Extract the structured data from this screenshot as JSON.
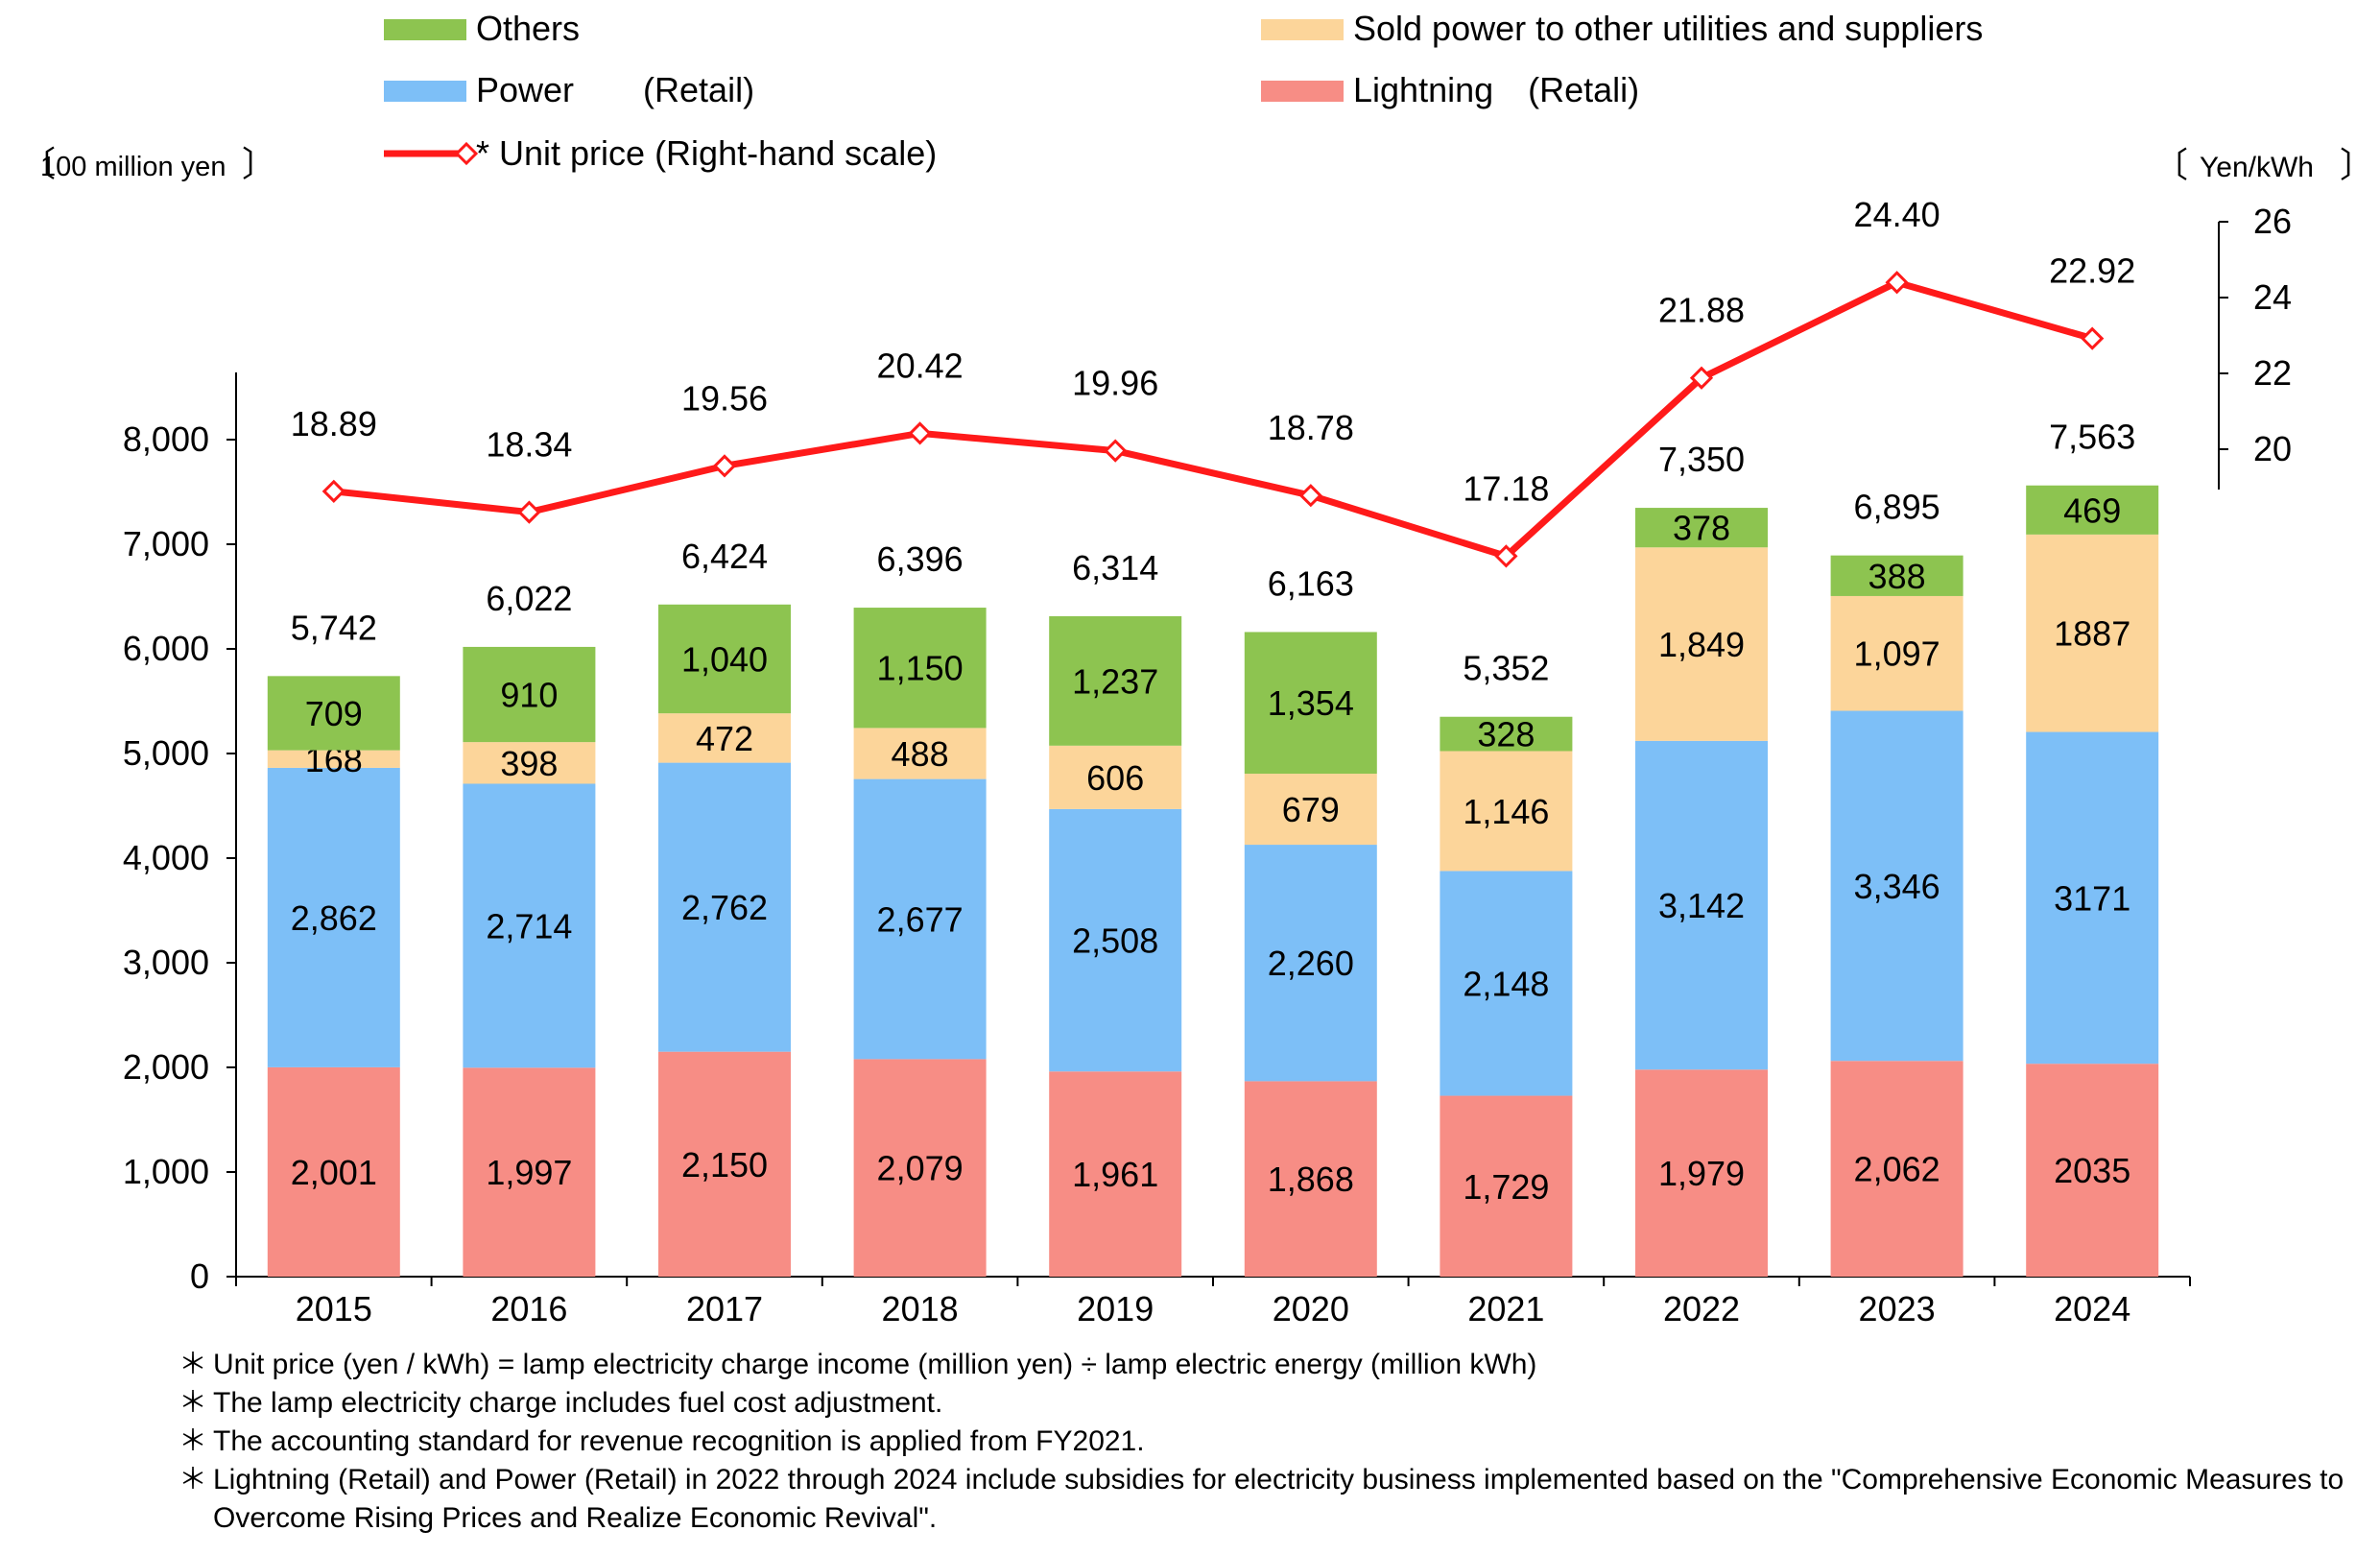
{
  "chart_data": {
    "type": "bar",
    "stacked": true,
    "categories": [
      "2015",
      "2016",
      "2017",
      "2018",
      "2019",
      "2020",
      "2021",
      "2022",
      "2023",
      "2024"
    ],
    "series": [
      {
        "name": "Lightning　(Retali)",
        "color": "#f78d85",
        "values": [
          2001,
          1997,
          2150,
          2079,
          1961,
          1868,
          1729,
          1979,
          2062,
          2035
        ],
        "labels": [
          "2,001",
          "1,997",
          "2,150",
          "2,079",
          "1,961",
          "1,868",
          "1,729",
          "1,979",
          "2,062",
          "2035"
        ]
      },
      {
        "name": "Power　　(Retail)",
        "color": "#7dbff7",
        "values": [
          2862,
          2714,
          2762,
          2677,
          2508,
          2260,
          2148,
          3142,
          3346,
          3171
        ],
        "labels": [
          "2,862",
          "2,714",
          "2,762",
          "2,677",
          "2,508",
          "2,260",
          "2,148",
          "3,142",
          "3,346",
          "3171"
        ]
      },
      {
        "name": "Sold power to other utilities and suppliers",
        "color": "#fcd59a",
        "values": [
          168,
          398,
          472,
          488,
          606,
          679,
          1146,
          1849,
          1097,
          1887
        ],
        "labels": [
          "168",
          "398",
          "472",
          "488",
          "606",
          "679",
          "1,146",
          "1,849",
          "1,097",
          "1887"
        ]
      },
      {
        "name": "Others",
        "color": "#8dc450",
        "values": [
          709,
          910,
          1040,
          1150,
          1237,
          1354,
          328,
          378,
          388,
          469
        ],
        "labels": [
          "709",
          "910",
          "1,040",
          "1,150",
          "1,237",
          "1,354",
          "328",
          "378",
          "388",
          "469"
        ]
      }
    ],
    "totals": [
      5742,
      6022,
      6424,
      6396,
      6314,
      6163,
      5352,
      7350,
      6895,
      7563
    ],
    "total_labels": [
      "5,742",
      "6,022",
      "6,424",
      "6,396",
      "6,314",
      "6,163",
      "5,352",
      "7,350",
      "6,895",
      "7,563"
    ],
    "line": {
      "name": "* Unit price (Right-hand scale)",
      "color": "#ff1a1a",
      "values": [
        18.89,
        18.34,
        19.56,
        20.42,
        19.96,
        18.78,
        17.18,
        21.88,
        24.4,
        22.92
      ],
      "labels": [
        "18.89",
        "18.34",
        "19.56",
        "20.42",
        "19.96",
        "18.78",
        "17.18",
        "21.88",
        "24.40",
        "22.92"
      ]
    },
    "y_left": {
      "label": "100 million yen",
      "lim": [
        0,
        8600
      ],
      "ticks": [
        0,
        1000,
        2000,
        3000,
        4000,
        5000,
        6000,
        7000,
        8000
      ],
      "tick_labels": [
        "0",
        "1,000",
        "2,000",
        "3,000",
        "4,000",
        "5,000",
        "6,000",
        "7,000",
        "8,000"
      ]
    },
    "y_right": {
      "label": "Yen/kWh",
      "ticks": [
        20,
        22,
        24,
        26
      ],
      "tick_labels": [
        "20",
        "22",
        "24",
        "26"
      ]
    },
    "legend_placement": "top",
    "grid": false
  },
  "notes": [
    {
      "mark": "＊",
      "text": "Unit price (yen / kWh) = lamp electricity charge income (million yen) ÷ lamp electric energy (million kWh)"
    },
    {
      "mark": "＊",
      "text": "The lamp electricity charge includes fuel cost adjustment."
    },
    {
      "mark": "＊",
      "text": "The accounting standard for revenue recognition is applied from FY2021."
    },
    {
      "mark": "＊",
      "text": "Lightning (Retail) and Power (Retail) in 2022 through 2024 include subsidies for electricity business implemented based on the \"Comprehensive Economic Measures to Overcome Rising Prices and Realize Economic Revival\"."
    }
  ]
}
